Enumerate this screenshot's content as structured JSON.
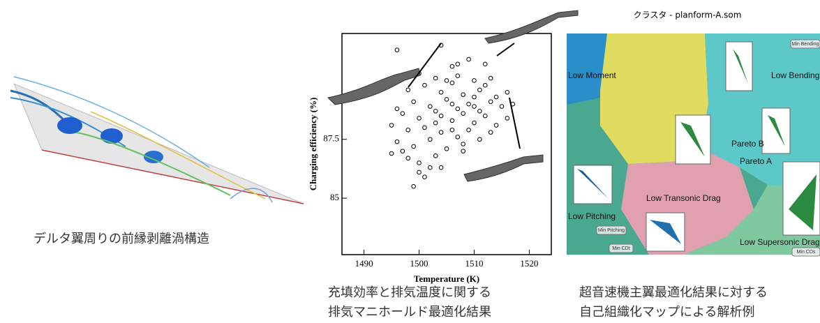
{
  "left": {
    "caption": "デルタ翼周りの前縁剥離渦構造"
  },
  "scatter": {
    "type": "scatter",
    "xlabel": "Temperature (K)",
    "ylabel": "Charging efficiency (%)",
    "x": [
      1496,
      1504,
      1509,
      1506,
      1512,
      1500,
      1503,
      1507,
      1510,
      1513,
      1498,
      1501,
      1504,
      1506,
      1508,
      1511,
      1514,
      1516,
      1499,
      1502,
      1505,
      1507,
      1509,
      1511,
      1513,
      1515,
      1497,
      1500,
      1503,
      1506,
      1508,
      1510,
      1512,
      1514,
      1516,
      1495,
      1498,
      1501,
      1504,
      1507,
      1509,
      1511,
      1513,
      1496,
      1499,
      1502,
      1505,
      1508,
      1495,
      1498,
      1500,
      1503,
      1500,
      1504,
      1501,
      1499,
      1497,
      1510,
      1512,
      1506,
      1504,
      1508,
      1502,
      1496,
      1517,
      1510,
      1507,
      1505,
      1503,
      1506
    ],
    "y": [
      91.3,
      91.5,
      90.9,
      90.6,
      90.7,
      90.3,
      90.1,
      90.2,
      90.0,
      90.1,
      89.6,
      89.8,
      89.5,
      89.9,
      89.4,
      89.6,
      89.3,
      89.5,
      89.1,
      88.9,
      89.2,
      88.8,
      89.0,
      88.7,
      89.1,
      88.9,
      88.6,
      88.4,
      88.7,
      88.3,
      88.6,
      88.2,
      88.5,
      88.1,
      88.4,
      88.1,
      87.9,
      88.0,
      87.8,
      87.6,
      87.9,
      87.5,
      87.8,
      87.4,
      87.2,
      87.5,
      87.1,
      87.3,
      86.9,
      86.7,
      86.5,
      86.8,
      86.1,
      86.3,
      85.9,
      85.5,
      87.0,
      88.9,
      89.8,
      89.0,
      88.5,
      87.0,
      86.3,
      88.8,
      89.0,
      89.3,
      90.7,
      90.0,
      88.2,
      87.9
    ],
    "xlim": [
      1486,
      1524
    ],
    "ylim": [
      82.6,
      92
    ],
    "xticks": [
      1490,
      1500,
      1510,
      1520
    ],
    "yticks": [
      85,
      87.5
    ],
    "caption": [
      "充填効率と排気温度に関する",
      "排気マニホールド最適化結果"
    ]
  },
  "som": {
    "title": "クラスタ - planform-A.som",
    "labels": [
      "Low Moment",
      "Low Bending",
      "Pareto B",
      "Pareto A",
      "Low Transonic Drag",
      "Low Pitching",
      "Low Supersonic Drag"
    ],
    "buttons": [
      "Min Bending",
      "Min Pitching",
      "Min CDt",
      "Min CDs"
    ],
    "caption": [
      "超音速機主翼最適化結果に対する",
      "自己組織化マップによる解析例"
    ]
  }
}
